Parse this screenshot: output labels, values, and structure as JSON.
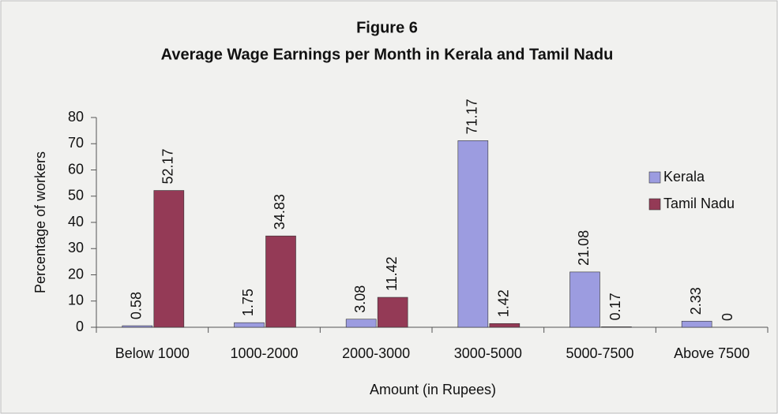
{
  "chart_data": {
    "type": "bar",
    "title": "Figure 6",
    "subtitle": "Average Wage Earnings per Month in Kerala and Tamil Nadu",
    "x_label": "Amount (in Rupees)",
    "y_label": "Percentage of workers",
    "categories": [
      "Below 1000",
      "1000-2000",
      "2000-3000",
      "3000-5000",
      "5000-7500",
      "Above 7500"
    ],
    "series": [
      {
        "name": "Kerala",
        "color": "#9c9ce0",
        "values": [
          0.58,
          1.75,
          3.08,
          71.17,
          21.08,
          2.33
        ]
      },
      {
        "name": "Tamil Nadu",
        "color": "#943a56",
        "values": [
          52.17,
          34.83,
          11.42,
          1.42,
          0.17,
          0
        ]
      }
    ],
    "ylim": [
      0,
      80
    ],
    "yticks": [
      0,
      10,
      20,
      30,
      40,
      50,
      60,
      70,
      80
    ],
    "legend": "right",
    "grid": false
  }
}
